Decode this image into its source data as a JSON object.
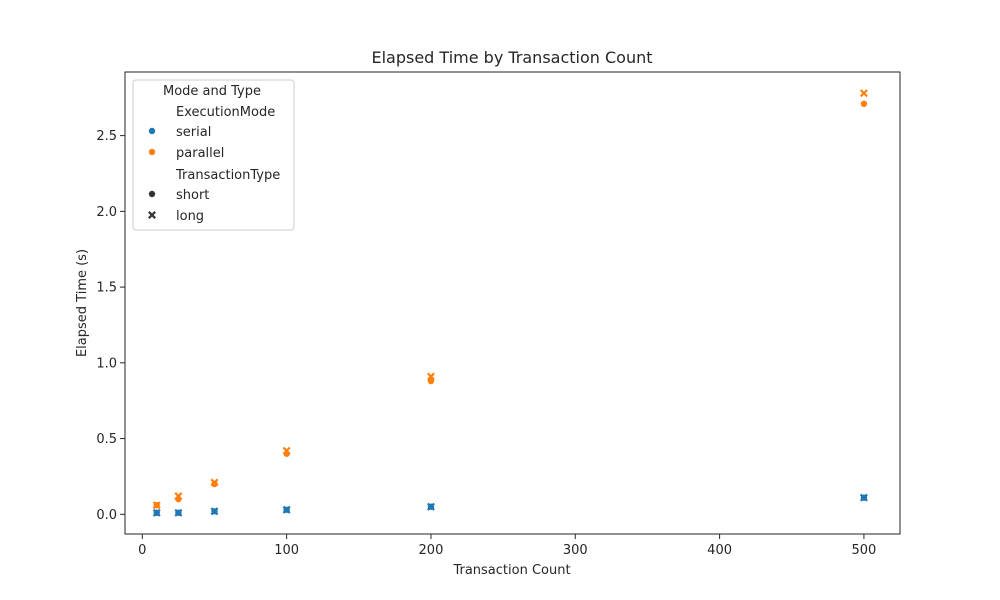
{
  "chart_data": {
    "type": "scatter",
    "title": "Elapsed Time by Transaction Count",
    "xlabel": "Transaction Count",
    "ylabel": "Elapsed Time (s)",
    "xlim": [
      -12,
      525
    ],
    "ylim": [
      -0.13,
      2.92
    ],
    "xticks": [
      0,
      100,
      200,
      300,
      400,
      500
    ],
    "xtick_labels": [
      "0",
      "100",
      "200",
      "300",
      "400",
      "500"
    ],
    "yticks": [
      0.0,
      0.5,
      1.0,
      1.5,
      2.0,
      2.5
    ],
    "ytick_labels": [
      "0.0",
      "0.5",
      "1.0",
      "1.5",
      "2.0",
      "2.5"
    ],
    "grid": false,
    "legend": {
      "title": "Mode and Type",
      "placement": "top-left",
      "hue_title": "ExecutionMode",
      "style_title": "TransactionType",
      "hue_entries": [
        {
          "label": "serial",
          "color": "#1f77b4"
        },
        {
          "label": "parallel",
          "color": "#ff7f0e"
        }
      ],
      "style_entries": [
        {
          "label": "short",
          "marker": "circle"
        },
        {
          "label": "long",
          "marker": "x"
        }
      ]
    },
    "series": [
      {
        "mode": "serial",
        "type": "short",
        "color": "#1f77b4",
        "marker": "circle",
        "x": [
          10,
          25,
          50,
          100,
          200,
          500
        ],
        "y": [
          0.01,
          0.01,
          0.02,
          0.03,
          0.05,
          0.11
        ]
      },
      {
        "mode": "serial",
        "type": "long",
        "color": "#1f77b4",
        "marker": "x",
        "x": [
          10,
          25,
          50,
          100,
          200,
          500
        ],
        "y": [
          0.01,
          0.01,
          0.02,
          0.03,
          0.05,
          0.11
        ]
      },
      {
        "mode": "parallel",
        "type": "short",
        "color": "#ff7f0e",
        "marker": "circle",
        "x": [
          10,
          25,
          50,
          100,
          200,
          500
        ],
        "y": [
          0.06,
          0.1,
          0.2,
          0.4,
          0.88,
          2.71
        ]
      },
      {
        "mode": "parallel",
        "type": "long",
        "color": "#ff7f0e",
        "marker": "x",
        "x": [
          10,
          25,
          50,
          100,
          200,
          500
        ],
        "y": [
          0.06,
          0.12,
          0.21,
          0.42,
          0.91,
          2.78
        ]
      }
    ]
  }
}
